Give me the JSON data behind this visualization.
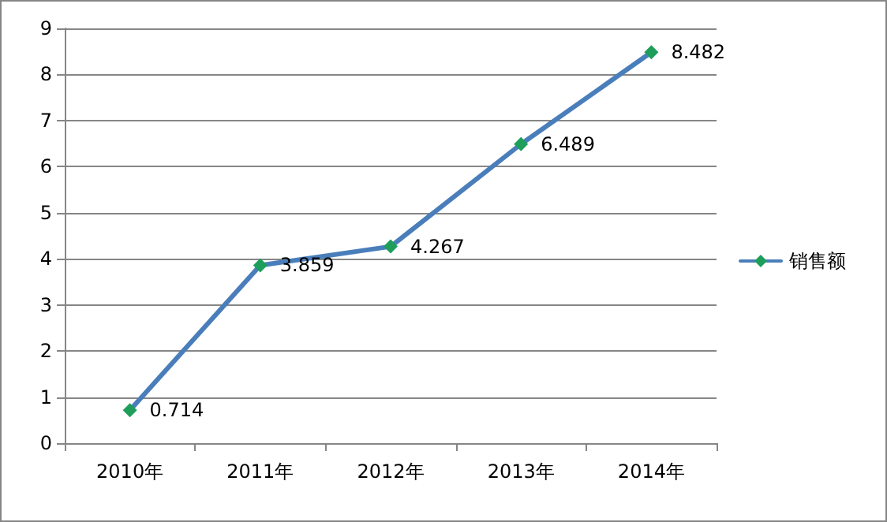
{
  "chart_data": {
    "type": "line",
    "categories": [
      "2010年",
      "2011年",
      "2012年",
      "2013年",
      "2014年"
    ],
    "series": [
      {
        "name": "销售额",
        "color": "#4a7ebb",
        "colors": [
          "#1e9e5a",
          "#1e9e5a",
          "#1e9e5a",
          "#1e9e5a",
          "#1e9e5a"
        ],
        "values": [
          0.714,
          3.859,
          4.267,
          6.489,
          8.482
        ]
      }
    ],
    "ylim": [
      0,
      9
    ],
    "yticks": [
      0,
      1,
      2,
      3,
      4,
      5,
      6,
      7,
      8,
      9
    ],
    "grid": "y",
    "legend": "right",
    "marker": "diamond",
    "line_style": "solid",
    "data_labels": true
  }
}
